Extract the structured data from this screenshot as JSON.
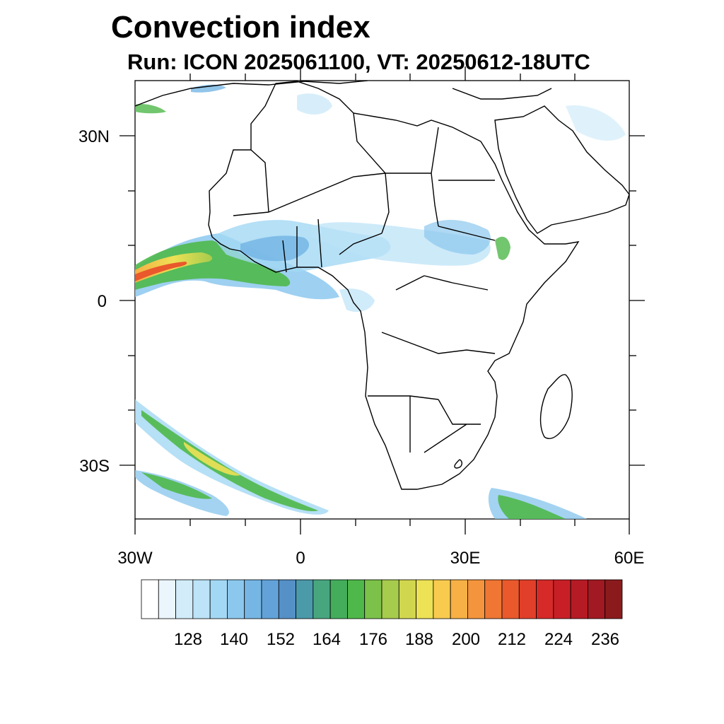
{
  "header": {
    "title": "Convection index",
    "subtitle": "Run: ICON 2025061100,  VT: 20250612-18UTC"
  },
  "axes": {
    "lat_labels": [
      "30N",
      "0",
      "30S"
    ],
    "lon_labels": [
      "30W",
      "0",
      "30E",
      "60E"
    ]
  },
  "colorbar": {
    "labels": [
      "128",
      "140",
      "152",
      "164",
      "176",
      "188",
      "200",
      "212",
      "224",
      "236"
    ],
    "colors": [
      "#ffffff",
      "#eaf6fc",
      "#d2ecf9",
      "#bce3f7",
      "#a3d8f4",
      "#8cc8ee",
      "#76b6e5",
      "#62a2d8",
      "#5590c6",
      "#4b9aaa",
      "#48a67f",
      "#44ad5c",
      "#4fb84a",
      "#7cc14a",
      "#a7cb4c",
      "#d1d64f",
      "#ede155",
      "#f8cb4f",
      "#f6b045",
      "#f4943c",
      "#ef7633",
      "#e9592c",
      "#e13f29",
      "#d62a28",
      "#c81f27",
      "#b51b25",
      "#a11922",
      "#8b1a1c"
    ]
  },
  "colors": {
    "land_outline": "#000000",
    "ocean": "#ffffff",
    "axis": "#000000"
  }
}
